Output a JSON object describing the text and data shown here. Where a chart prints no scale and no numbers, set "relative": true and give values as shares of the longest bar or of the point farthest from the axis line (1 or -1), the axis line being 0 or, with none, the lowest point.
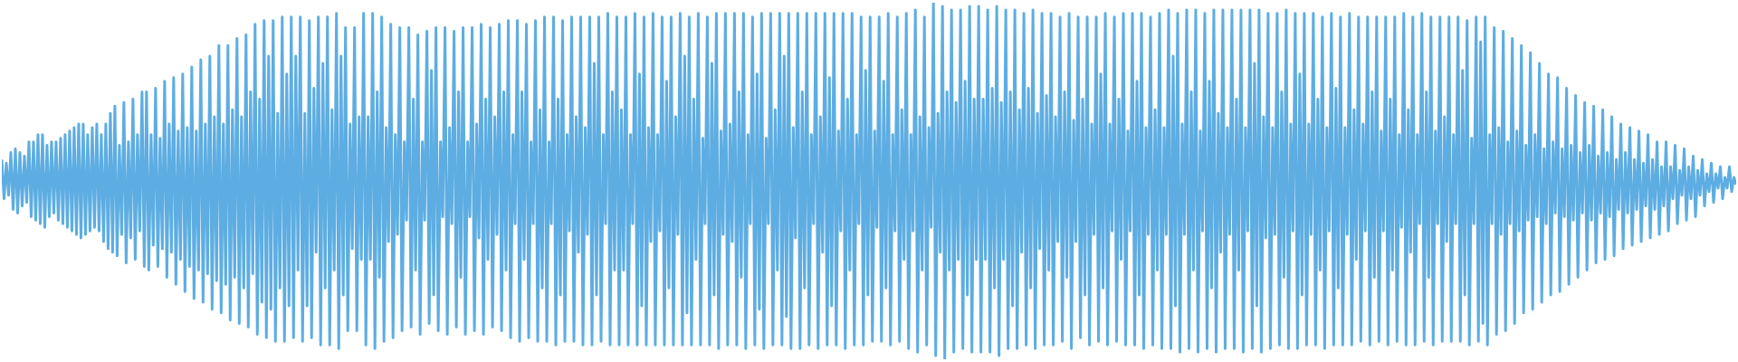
{
  "chart_data": {
    "type": "line",
    "relative": true,
    "categories": [
      null,
      null,
      null,
      null,
      null,
      null,
      null,
      null,
      null,
      null,
      null,
      null,
      null,
      null,
      null,
      null,
      null,
      null,
      null,
      null,
      null,
      null,
      null,
      null,
      null,
      null,
      null,
      null,
      null,
      null,
      null,
      null,
      null,
      null,
      null,
      null,
      null,
      null,
      null,
      null,
      null,
      null,
      null,
      null,
      null,
      null,
      null,
      null,
      null,
      null,
      null,
      null,
      null,
      null,
      null,
      null,
      null,
      null,
      null,
      null,
      null,
      null,
      null,
      null,
      null,
      null,
      null,
      null,
      null,
      null,
      null,
      null,
      null,
      null,
      null,
      null,
      null,
      null,
      null,
      null,
      null,
      null,
      null,
      null,
      null,
      null,
      null,
      null,
      null,
      null,
      null,
      null,
      null,
      null,
      null,
      null,
      null,
      null,
      null,
      null,
      null,
      null,
      null,
      null,
      null,
      null,
      null,
      null,
      null,
      null,
      null,
      null,
      null,
      null,
      null,
      null,
      null,
      null,
      null,
      null,
      null,
      null,
      null,
      null,
      null,
      null,
      null,
      null,
      null,
      null,
      null,
      null,
      null,
      null,
      null,
      null,
      null,
      null,
      null,
      null,
      null,
      null,
      null,
      null,
      null,
      null,
      null,
      null,
      null,
      null,
      null,
      null,
      null,
      null,
      null,
      null,
      null,
      null,
      null,
      null,
      null,
      null,
      null,
      null,
      null,
      null,
      null,
      null,
      null,
      null,
      null,
      null,
      null,
      null,
      null,
      null,
      null,
      null,
      null,
      null,
      null,
      null,
      null,
      null,
      null,
      null,
      null,
      null,
      null,
      null,
      null,
      null,
      null,
      null,
      null,
      null,
      null,
      null,
      null,
      null,
      null,
      null,
      null,
      null,
      null,
      null,
      null,
      null,
      null,
      null,
      null,
      null,
      null,
      null,
      null,
      null,
      null,
      null,
      null,
      null,
      null,
      null,
      null,
      null,
      null,
      null,
      null,
      null,
      null,
      null,
      null,
      null,
      null,
      null,
      null,
      null,
      null,
      null,
      null,
      null,
      null,
      null,
      null,
      null,
      null,
      null,
      null,
      null,
      null,
      null,
      null,
      null,
      null,
      null,
      null,
      null,
      null,
      null,
      null,
      null,
      null,
      null,
      null,
      null,
      null,
      null,
      null,
      null,
      null,
      null,
      null,
      null,
      null,
      null,
      null,
      null,
      null,
      null,
      null,
      null,
      null,
      null,
      null,
      null,
      null,
      null,
      null,
      null,
      null,
      null,
      null,
      null,
      null,
      null,
      null,
      null,
      null,
      null,
      null,
      null,
      null,
      null,
      null,
      null,
      null,
      null,
      null,
      null,
      null,
      null,
      null,
      null,
      null,
      null,
      null,
      null,
      null,
      null,
      null,
      null,
      null,
      null,
      null,
      null,
      null,
      null,
      null,
      null,
      null,
      null,
      null,
      null,
      null,
      null,
      null,
      null,
      null,
      null,
      null,
      null,
      null,
      null,
      null,
      null,
      null,
      null,
      null,
      null,
      null,
      null,
      null,
      null,
      null,
      null,
      null,
      null,
      null,
      null,
      null,
      null,
      null,
      null,
      null,
      null,
      null,
      null,
      null,
      null,
      null,
      null,
      null,
      null,
      null,
      null,
      null,
      null,
      null,
      null,
      null,
      null,
      null,
      null,
      null,
      null,
      null,
      null,
      null,
      null,
      null,
      null,
      null,
      null,
      null,
      null,
      null,
      null,
      null,
      null,
      null,
      null,
      null,
      null,
      null,
      null,
      null,
      null,
      null,
      null,
      null,
      null,
      null,
      null,
      null,
      null,
      null,
      null,
      null,
      null,
      null,
      null,
      null,
      null,
      null,
      null,
      null,
      null,
      null,
      null,
      null,
      null,
      null,
      null,
      null,
      null,
      null,
      null,
      null,
      null,
      null,
      null,
      null,
      null,
      null,
      null,
      null,
      null,
      null,
      null,
      null,
      null,
      null,
      null,
      null,
      null,
      null,
      null,
      null,
      null,
      null,
      null,
      null,
      null,
      null,
      null,
      null,
      null,
      null,
      null,
      null,
      null,
      null,
      null,
      null,
      null,
      null,
      null,
      null,
      null,
      null,
      null,
      null,
      null,
      null,
      null,
      null,
      null,
      null,
      null,
      null,
      null,
      null,
      null,
      null,
      null,
      null,
      null,
      null,
      null,
      null,
      null,
      null,
      null,
      null,
      null,
      null,
      null,
      null,
      null,
      null,
      null,
      null,
      null,
      null,
      null,
      null,
      null,
      null,
      null,
      null,
      null,
      null,
      null,
      null,
      null,
      null,
      null,
      null,
      null,
      null,
      null,
      null,
      null,
      null,
      null,
      null,
      null,
      null,
      null,
      null,
      null,
      null,
      null,
      null,
      null,
      null,
      null,
      null,
      null,
      null,
      null,
      null,
      null,
      null,
      null,
      null,
      null,
      null,
      null,
      null,
      null,
      null,
      null,
      null,
      null,
      null,
      null,
      null,
      null,
      null,
      null,
      null,
      null,
      null,
      null,
      null,
      null,
      null,
      null,
      null,
      null,
      null,
      null,
      null,
      null,
      null,
      null,
      null,
      null,
      null,
      null,
      null,
      null,
      null,
      null,
      null,
      null,
      null,
      null,
      null,
      null,
      null,
      null,
      null,
      null,
      null,
      null,
      null,
      null,
      null,
      null,
      null,
      null,
      null,
      null,
      null,
      null,
      null,
      null,
      null,
      null,
      null,
      null,
      null,
      null,
      null,
      null,
      null,
      null,
      null,
      null,
      null,
      null,
      null,
      null,
      null,
      null,
      null,
      null,
      null,
      null,
      null,
      null,
      null,
      null,
      null,
      null,
      null,
      null,
      null,
      null,
      null,
      null,
      null,
      null,
      null,
      null,
      null,
      null,
      null,
      null,
      null,
      null,
      null,
      null,
      null,
      null,
      null,
      null,
      null,
      null,
      null,
      null,
      null,
      null,
      null,
      null,
      null,
      null,
      null,
      null,
      null,
      null,
      null,
      null,
      null,
      null,
      null,
      null,
      null,
      null,
      null,
      null,
      null,
      null,
      null,
      null,
      null,
      null,
      null,
      null,
      null,
      null,
      null,
      null,
      null,
      null,
      null,
      null,
      null,
      null,
      null,
      null,
      null,
      null,
      null,
      null,
      null,
      null,
      null,
      null,
      null,
      null,
      null,
      null,
      null,
      null,
      null,
      null,
      null,
      null,
      null,
      null,
      null,
      null,
      null,
      null,
      null,
      null,
      null,
      null,
      null,
      null,
      null,
      null,
      null,
      null,
      null,
      null,
      null,
      null,
      null,
      null,
      null,
      null,
      null,
      null,
      null,
      null,
      null,
      null,
      null,
      null,
      null,
      null,
      null,
      null,
      null,
      null
    ],
    "series": [
      {
        "color": "#5dade2",
        "values": [
          0.56,
          0.45,
          0.55,
          0.46,
          0.58,
          0.42,
          0.59,
          0.41,
          0.58,
          0.43,
          0.57,
          0.44,
          0.61,
          0.4,
          0.61,
          0.39,
          0.63,
          0.38,
          0.63,
          0.37,
          0.6,
          0.4,
          0.61,
          0.41,
          0.61,
          0.39,
          0.62,
          0.38,
          0.63,
          0.37,
          0.64,
          0.36,
          0.65,
          0.35,
          0.66,
          0.34,
          0.66,
          0.35,
          0.63,
          0.36,
          0.65,
          0.37,
          0.66,
          0.36,
          0.63,
          0.33,
          0.66,
          0.31,
          0.69,
          0.3,
          0.71,
          0.29,
          0.6,
          0.35,
          0.72,
          0.27,
          0.61,
          0.34,
          0.73,
          0.28,
          0.63,
          0.36,
          0.75,
          0.26,
          0.75,
          0.25,
          0.63,
          0.32,
          0.76,
          0.26,
          0.62,
          0.31,
          0.78,
          0.23,
          0.66,
          0.3,
          0.79,
          0.21,
          0.64,
          0.28,
          0.8,
          0.19,
          0.65,
          0.26,
          0.82,
          0.17,
          0.64,
          0.25,
          0.84,
          0.16,
          0.66,
          0.24,
          0.85,
          0.14,
          0.68,
          0.22,
          0.88,
          0.13,
          0.66,
          0.21,
          0.88,
          0.11,
          0.7,
          0.23,
          0.9,
          0.1,
          0.68,
          0.2,
          0.91,
          0.09,
          0.75,
          0.24,
          0.94,
          0.07,
          0.73,
          0.16,
          0.95,
          0.06,
          0.85,
          0.14,
          0.95,
          0.05,
          0.69,
          0.2,
          0.96,
          0.05,
          0.8,
          0.15,
          0.96,
          0.06,
          0.85,
          0.25,
          0.96,
          0.05,
          0.69,
          0.15,
          0.95,
          0.06,
          0.76,
          0.3,
          0.96,
          0.04,
          0.83,
          0.2,
          0.96,
          0.04,
          0.7,
          0.25,
          0.97,
          0.03,
          0.85,
          0.18,
          0.93,
          0.08,
          0.66,
          0.31,
          0.93,
          0.08,
          0.68,
          0.28,
          0.97,
          0.04,
          0.68,
          0.28,
          0.97,
          0.03,
          0.75,
          0.23,
          0.96,
          0.05,
          0.65,
          0.33,
          0.94,
          0.06,
          0.63,
          0.35,
          0.93,
          0.08,
          0.61,
          0.39,
          0.93,
          0.09,
          0.73,
          0.25,
          0.91,
          0.07,
          0.61,
          0.39,
          0.92,
          0.1,
          0.81,
          0.18,
          0.93,
          0.08,
          0.61,
          0.4,
          0.93,
          0.07,
          0.65,
          0.38,
          0.92,
          0.09,
          0.75,
          0.23,
          0.93,
          0.07,
          0.61,
          0.4,
          0.93,
          0.08,
          0.66,
          0.34,
          0.94,
          0.07,
          0.73,
          0.28,
          0.93,
          0.09,
          0.68,
          0.35,
          0.94,
          0.08,
          0.75,
          0.25,
          0.95,
          0.06,
          0.63,
          0.38,
          0.95,
          0.05,
          0.75,
          0.28,
          0.94,
          0.06,
          0.61,
          0.38,
          0.95,
          0.05,
          0.7,
          0.2,
          0.96,
          0.05,
          0.61,
          0.38,
          0.96,
          0.04,
          0.73,
          0.18,
          0.95,
          0.05,
          0.63,
          0.36,
          0.96,
          0.05,
          0.68,
          0.3,
          0.96,
          0.04,
          0.65,
          0.35,
          0.96,
          0.04,
          0.83,
          0.18,
          0.96,
          0.05,
          0.63,
          0.38,
          0.97,
          0.04,
          0.75,
          0.25,
          0.96,
          0.04,
          0.7,
          0.25,
          0.96,
          0.04,
          0.63,
          0.38,
          0.97,
          0.04,
          0.8,
          0.15,
          0.96,
          0.04,
          0.65,
          0.33,
          0.97,
          0.04,
          0.63,
          0.36,
          0.96,
          0.04,
          0.78,
          0.2,
          0.96,
          0.04,
          0.68,
          0.35,
          0.97,
          0.04,
          0.85,
          0.13,
          0.96,
          0.04,
          0.73,
          0.28,
          0.97,
          0.04,
          0.62,
          0.38,
          0.96,
          0.04,
          0.83,
          0.18,
          0.97,
          0.03,
          0.64,
          0.35,
          0.97,
          0.04,
          0.66,
          0.33,
          0.97,
          0.04,
          0.75,
          0.23,
          0.97,
          0.03,
          0.63,
          0.38,
          0.96,
          0.04,
          0.8,
          0.14,
          0.97,
          0.03,
          0.62,
          0.38,
          0.97,
          0.04,
          0.7,
          0.25,
          0.97,
          0.04,
          0.85,
          0.12,
          0.97,
          0.03,
          0.65,
          0.34,
          0.97,
          0.03,
          0.75,
          0.2,
          0.97,
          0.04,
          0.63,
          0.38,
          0.97,
          0.03,
          0.68,
          0.3,
          0.97,
          0.04,
          0.79,
          0.15,
          0.97,
          0.04,
          0.64,
          0.36,
          0.97,
          0.03,
          0.73,
          0.25,
          0.97,
          0.04,
          0.63,
          0.38,
          0.96,
          0.04,
          0.81,
          0.18,
          0.96,
          0.05,
          0.64,
          0.37,
          0.96,
          0.05,
          0.78,
          0.2,
          0.97,
          0.04,
          0.63,
          0.36,
          0.96,
          0.05,
          0.7,
          0.28,
          0.97,
          0.03,
          0.63,
          0.36,
          0.98,
          0.02,
          0.68,
          0.25,
          0.96,
          0.04,
          0.65,
          0.37,
          1.0,
          0.01,
          0.69,
          0.3,
          0.99,
          0.0,
          0.75,
          0.25,
          0.98,
          0.02,
          0.72,
          0.28,
          0.98,
          0.03,
          0.78,
          0.18,
          0.99,
          0.02,
          0.73,
          0.28,
          0.99,
          0.02,
          0.73,
          0.28,
          0.98,
          0.02,
          0.76,
          0.2,
          0.99,
          0.01,
          0.72,
          0.28,
          0.98,
          0.03,
          0.75,
          0.15,
          0.98,
          0.03,
          0.7,
          0.3,
          0.97,
          0.04,
          0.76,
          0.2,
          0.98,
          0.03,
          0.69,
          0.31,
          0.97,
          0.04,
          0.74,
          0.25,
          0.97,
          0.04,
          0.68,
          0.33,
          0.96,
          0.05,
          0.75,
          0.23,
          0.97,
          0.03,
          0.67,
          0.33,
          0.96,
          0.06,
          0.73,
          0.18,
          0.96,
          0.04,
          0.66,
          0.35,
          0.96,
          0.05,
          0.8,
          0.2,
          0.97,
          0.04,
          0.66,
          0.36,
          0.96,
          0.05,
          0.73,
          0.28,
          0.97,
          0.04,
          0.64,
          0.36,
          0.97,
          0.04,
          0.78,
          0.18,
          0.97,
          0.03,
          0.65,
          0.35,
          0.96,
          0.04,
          0.7,
          0.25,
          0.97,
          0.03,
          0.65,
          0.35,
          0.98,
          0.03,
          0.85,
          0.15,
          0.97,
          0.02,
          0.66,
          0.35,
          0.98,
          0.03,
          0.75,
          0.25,
          0.98,
          0.02,
          0.64,
          0.36,
          0.97,
          0.03,
          0.78,
          0.2,
          0.98,
          0.02,
          0.69,
          0.3,
          0.98,
          0.03,
          0.65,
          0.35,
          0.98,
          0.03,
          0.73,
          0.25,
          0.98,
          0.02,
          0.65,
          0.36,
          0.98,
          0.03,
          0.83,
          0.15,
          0.98,
          0.02,
          0.68,
          0.34,
          0.97,
          0.03,
          0.65,
          0.35,
          0.97,
          0.04,
          0.75,
          0.23,
          0.98,
          0.03,
          0.66,
          0.36,
          0.97,
          0.03,
          0.8,
          0.18,
          0.97,
          0.04,
          0.66,
          0.35,
          0.97,
          0.04,
          0.73,
          0.25,
          0.96,
          0.03,
          0.65,
          0.36,
          0.97,
          0.04,
          0.76,
          0.2,
          0.96,
          0.04,
          0.65,
          0.35,
          0.97,
          0.04,
          0.7,
          0.28,
          0.96,
          0.05,
          0.66,
          0.36,
          0.96,
          0.04,
          0.75,
          0.23,
          0.96,
          0.05,
          0.64,
          0.36,
          0.96,
          0.04,
          0.73,
          0.25,
          0.96,
          0.05,
          0.63,
          0.37,
          0.97,
          0.04,
          0.7,
          0.3,
          0.96,
          0.04,
          0.63,
          0.38,
          0.97,
          0.05,
          0.75,
          0.23,
          0.96,
          0.04,
          0.64,
          0.38,
          0.96,
          0.05,
          0.68,
          0.33,
          0.96,
          0.05,
          0.63,
          0.38,
          0.96,
          0.05,
          0.81,
          0.18,
          0.95,
          0.04,
          0.62,
          0.38,
          0.96,
          0.05,
          0.89,
          0.1,
          0.96,
          0.04,
          0.63,
          0.38,
          0.93,
          0.07,
          0.65,
          0.35,
          0.92,
          0.08,
          0.61,
          0.38,
          0.9,
          0.1,
          0.64,
          0.36,
          0.88,
          0.13,
          0.6,
          0.39,
          0.86,
          0.14,
          0.63,
          0.4,
          0.83,
          0.16,
          0.59,
          0.38,
          0.8,
          0.18,
          0.61,
          0.41,
          0.79,
          0.19,
          0.59,
          0.4,
          0.76,
          0.21,
          0.6,
          0.39,
          0.74,
          0.23,
          0.58,
          0.41,
          0.72,
          0.25,
          0.6,
          0.39,
          0.71,
          0.27,
          0.57,
          0.41,
          0.7,
          0.28,
          0.58,
          0.4,
          0.68,
          0.29,
          0.56,
          0.42,
          0.66,
          0.31,
          0.58,
          0.41,
          0.65,
          0.32,
          0.56,
          0.42,
          0.64,
          0.33,
          0.55,
          0.43,
          0.63,
          0.34,
          0.56,
          0.42,
          0.61,
          0.35,
          0.54,
          0.43,
          0.61,
          0.36,
          0.54,
          0.45,
          0.6,
          0.38,
          0.53,
          0.46,
          0.59,
          0.39,
          0.54,
          0.45,
          0.57,
          0.4,
          0.53,
          0.46,
          0.56,
          0.43,
          0.52,
          0.47,
          0.55,
          0.44,
          0.52,
          0.48,
          0.54,
          0.45,
          0.51,
          0.48,
          0.54,
          0.47,
          0.51,
          0.49
        ]
      }
    ]
  }
}
